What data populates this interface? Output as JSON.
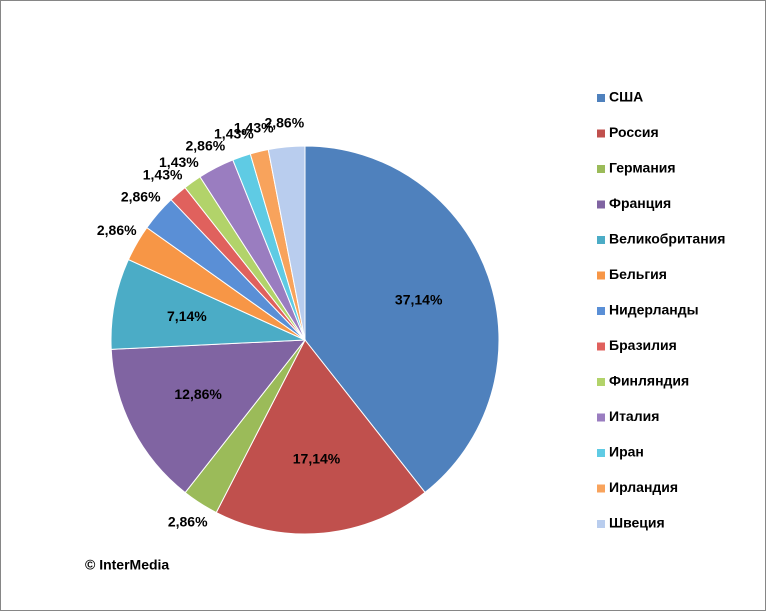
{
  "chart_data": {
    "type": "pie",
    "categories": [
      "США",
      "Россия",
      "Германия",
      "Франция",
      "Великобритания",
      "Бельгия",
      "Нидерланды",
      "Бразилия",
      "Финляндия",
      "Италия",
      "Иран",
      "Ирландия",
      "Швеция"
    ],
    "values": [
      37.14,
      17.14,
      2.86,
      12.86,
      7.14,
      2.86,
      2.86,
      1.43,
      1.43,
      2.86,
      1.43,
      1.43,
      2.86
    ],
    "value_labels": [
      "37,14%",
      "17,14%",
      "2,86%",
      "12,86%",
      "7,14%",
      "2,86%",
      "2,86%",
      "1,43%",
      "1,43%",
      "2,86%",
      "1,43%",
      "1,43%",
      "2,86%"
    ],
    "colors": [
      "#4f81bd",
      "#c0504d",
      "#9bbb59",
      "#8064a2",
      "#4bacc6",
      "#f79646",
      "#5a8fd6",
      "#e0615d",
      "#b2d36a",
      "#9a7dc0",
      "#5fcbe4",
      "#f8a35c",
      "#b9cdee"
    ],
    "legend": "right",
    "annotations": [
      "© InterMedia"
    ]
  }
}
